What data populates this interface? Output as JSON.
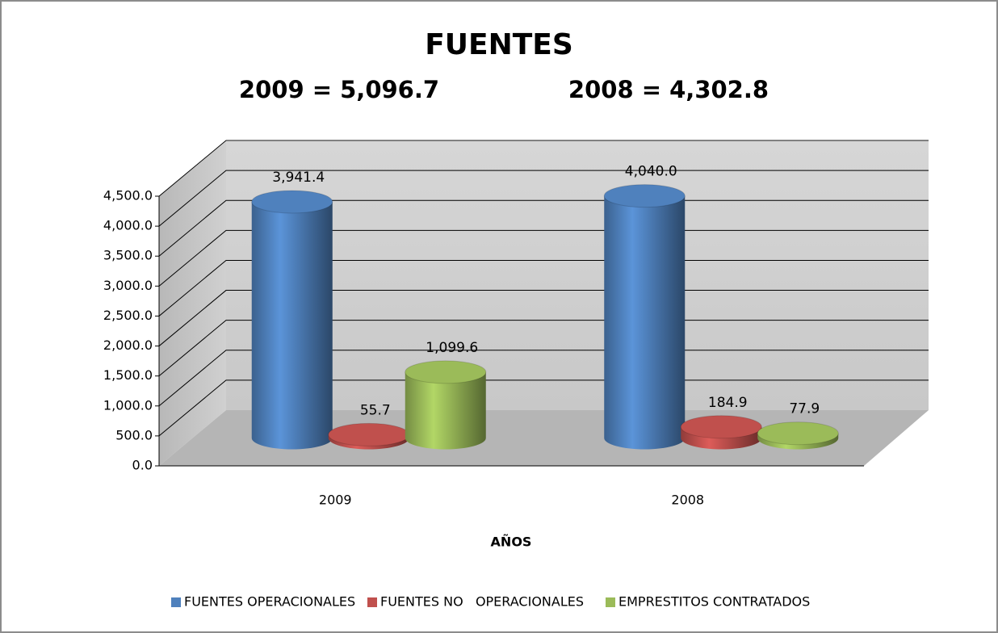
{
  "chart_data": {
    "type": "bar3d",
    "title": "FUENTES",
    "subtitles": [
      "2009 = 5,096.7",
      "2008 = 4,302.8"
    ],
    "x_label": "AÑOS",
    "categories": [
      "2009",
      "2008"
    ],
    "series": [
      {
        "name": "FUENTES OPERACIONALES",
        "color": "#4f81bd",
        "values": [
          3941.4,
          4040.0
        ],
        "value_labels": [
          "3,941.4",
          "4,040.0"
        ]
      },
      {
        "name": "FUENTES NO   OPERACIONALES",
        "color": "#c0504d",
        "values": [
          55.7,
          184.9
        ],
        "value_labels": [
          "55.7",
          "184.9"
        ]
      },
      {
        "name": "EMPRESTITOS CONTRATADOS",
        "color": "#9bbb59",
        "values": [
          1099.6,
          77.9
        ],
        "value_labels": [
          "1,099.6",
          "77.9"
        ]
      }
    ],
    "ylim": [
      0,
      4500
    ],
    "yticks": [
      {
        "value": 0,
        "label": "0.0"
      },
      {
        "value": 500,
        "label": "500.0"
      },
      {
        "value": 1000,
        "label": "1,000.0"
      },
      {
        "value": 1500,
        "label": "1,500.0"
      },
      {
        "value": 2000,
        "label": "2,000.0"
      },
      {
        "value": 2500,
        "label": "2,500.0"
      },
      {
        "value": 3000,
        "label": "3,000.0"
      },
      {
        "value": 3500,
        "label": "3,500.0"
      },
      {
        "value": 4000,
        "label": "4,000.0"
      },
      {
        "value": 4500,
        "label": "4,500.0"
      }
    ],
    "grid": true,
    "legend": "bottom"
  }
}
